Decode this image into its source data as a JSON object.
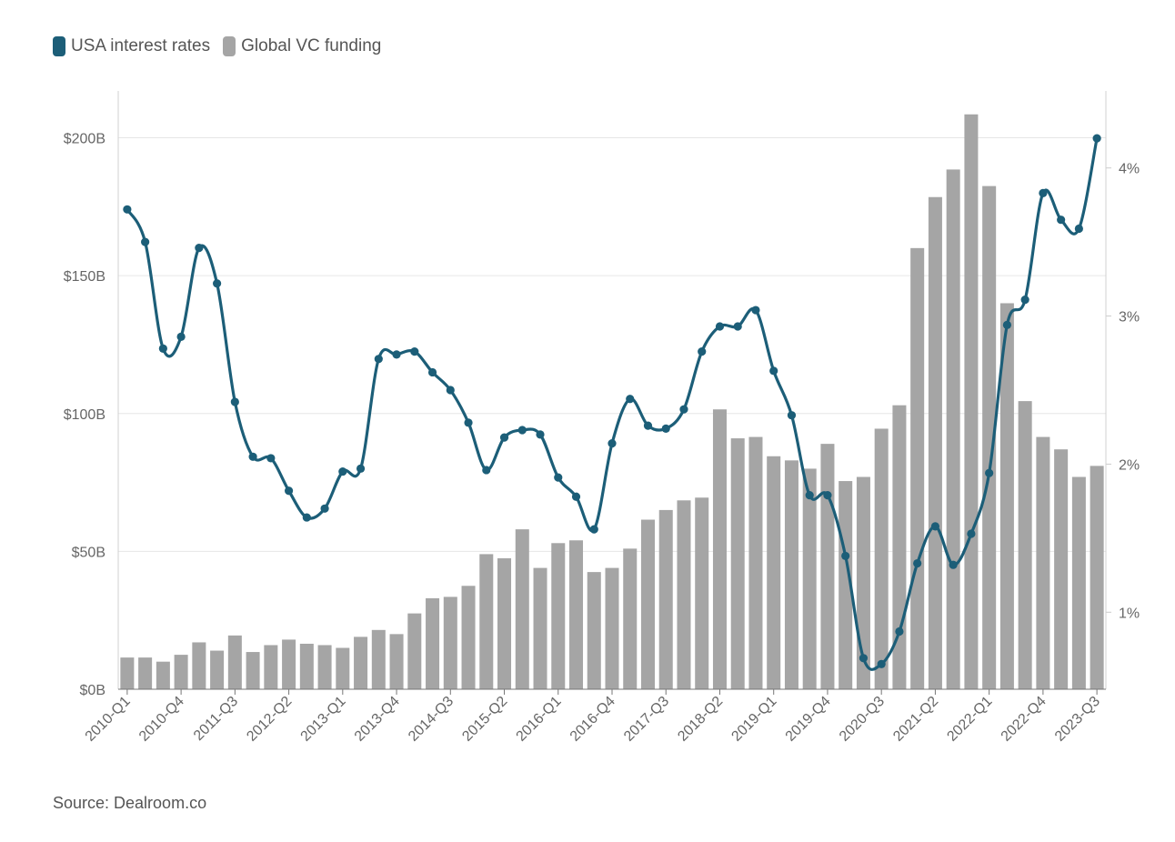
{
  "legend": {
    "line_label": "USA interest rates",
    "bar_label": "Global VC funding",
    "line_color": "#1c5e78",
    "bar_color": "#a5a5a5"
  },
  "source": "Source: Dealroom.co",
  "chart_data": {
    "type": "bar+line",
    "title": "",
    "xlabel": "",
    "ylabel": "",
    "left_axis": {
      "ticks": [
        0,
        50,
        100,
        150,
        200
      ],
      "labels": [
        "$0B",
        "$50B",
        "$100B",
        "$150B",
        "$200B"
      ],
      "ylim": [
        0,
        217
      ]
    },
    "right_axis": {
      "ticks": [
        1,
        2,
        3,
        4
      ],
      "labels": [
        "1%",
        "2%",
        "3%",
        "4%"
      ],
      "ylim": [
        0.48,
        4.52
      ]
    },
    "x_tick_labels": [
      "2010-Q1",
      "2010-Q4",
      "2011-Q3",
      "2012-Q2",
      "2013-Q1",
      "2013-Q4",
      "2014-Q3",
      "2015-Q2",
      "2016-Q1",
      "2016-Q4",
      "2017-Q3",
      "2018-Q2",
      "2019-Q1",
      "2019-Q4",
      "2020-Q3",
      "2021-Q2",
      "2022-Q1",
      "2022-Q4",
      "2023-Q3"
    ],
    "categories": [
      "2010-Q1",
      "2010-Q2",
      "2010-Q3",
      "2010-Q4",
      "2011-Q1",
      "2011-Q2",
      "2011-Q3",
      "2011-Q4",
      "2012-Q1",
      "2012-Q2",
      "2012-Q3",
      "2012-Q4",
      "2013-Q1",
      "2013-Q2",
      "2013-Q3",
      "2013-Q4",
      "2014-Q1",
      "2014-Q2",
      "2014-Q3",
      "2014-Q4",
      "2015-Q1",
      "2015-Q2",
      "2015-Q3",
      "2015-Q4",
      "2016-Q1",
      "2016-Q2",
      "2016-Q3",
      "2016-Q4",
      "2017-Q1",
      "2017-Q2",
      "2017-Q3",
      "2017-Q4",
      "2018-Q1",
      "2018-Q2",
      "2018-Q3",
      "2018-Q4",
      "2019-Q1",
      "2019-Q2",
      "2019-Q3",
      "2019-Q4",
      "2020-Q1",
      "2020-Q2",
      "2020-Q3",
      "2020-Q4",
      "2021-Q1",
      "2021-Q2",
      "2021-Q3",
      "2021-Q4",
      "2022-Q1",
      "2022-Q2",
      "2022-Q3",
      "2022-Q4",
      "2023-Q1",
      "2023-Q2",
      "2023-Q3"
    ],
    "series": [
      {
        "name": "Global VC funding",
        "type": "bar",
        "axis": "left",
        "values": [
          11.5,
          11.5,
          10.0,
          12.5,
          17.0,
          14.0,
          19.5,
          13.5,
          16.0,
          18.0,
          16.5,
          16.0,
          15.0,
          19.0,
          21.5,
          20.0,
          27.5,
          33.0,
          33.5,
          37.5,
          49.0,
          47.5,
          58.0,
          44.0,
          53.0,
          54.0,
          42.5,
          44.0,
          51.0,
          61.5,
          65.0,
          68.5,
          69.5,
          101.5,
          91.0,
          91.5,
          84.5,
          83.0,
          80.0,
          89.0,
          75.5,
          77.0,
          94.5,
          103.0,
          160.0,
          178.5,
          188.5,
          208.5,
          182.5,
          140.0,
          104.5,
          91.5,
          87.0,
          77.0,
          81.0
        ]
      },
      {
        "name": "USA interest rates",
        "type": "line",
        "axis": "right",
        "values": [
          3.72,
          3.5,
          2.78,
          2.86,
          3.46,
          3.22,
          2.42,
          2.05,
          2.04,
          1.82,
          1.64,
          1.7,
          1.95,
          1.97,
          2.71,
          2.74,
          2.76,
          2.62,
          2.5,
          2.28,
          1.96,
          2.18,
          2.23,
          2.2,
          1.91,
          1.78,
          1.56,
          2.14,
          2.44,
          2.26,
          2.24,
          2.37,
          2.76,
          2.93,
          2.93,
          3.04,
          2.63,
          2.33,
          1.79,
          1.79,
          1.38,
          0.69,
          0.65,
          0.87,
          1.33,
          1.58,
          1.32,
          1.53,
          1.94,
          2.94,
          3.11,
          3.83,
          3.65,
          3.59,
          4.2
        ]
      }
    ]
  }
}
